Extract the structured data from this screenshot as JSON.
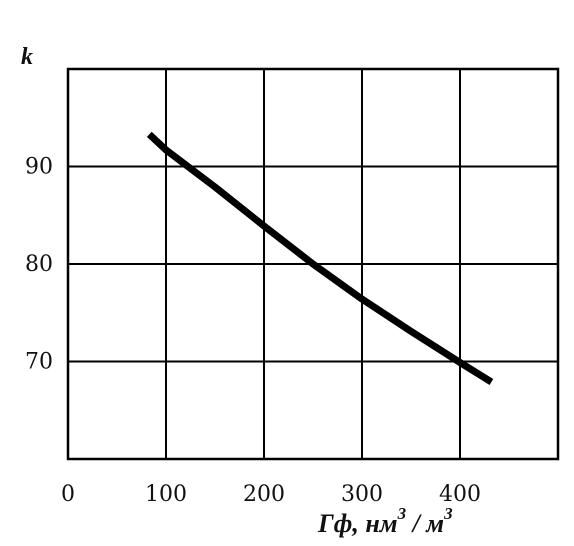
{
  "chart_data": {
    "type": "line",
    "title": "",
    "xlabel": "Гф, нм",
    "xlabel_superscript": "3",
    "xlabel_sep": " / ",
    "xlabel_unit": "м",
    "xlabel_unit_superscript": "3",
    "ylabel": "k",
    "xlim": [
      0,
      500
    ],
    "ylim": [
      60,
      100
    ],
    "xticks": [
      0,
      100,
      200,
      300,
      400
    ],
    "xtick_labels": [
      "0",
      "100",
      "200",
      "300",
      "400"
    ],
    "yticks": [
      70,
      80,
      90
    ],
    "ytick_labels": [
      "70",
      "80",
      "90"
    ],
    "grid": true,
    "legend": "none",
    "series": [
      {
        "color": "#000000",
        "x": [
          83,
          100,
          150,
          200,
          250,
          300,
          350,
          400,
          432
        ],
        "y": [
          93.3,
          91.7,
          87.9,
          83.9,
          80.0,
          76.4,
          73.1,
          69.9,
          67.9
        ]
      }
    ]
  }
}
